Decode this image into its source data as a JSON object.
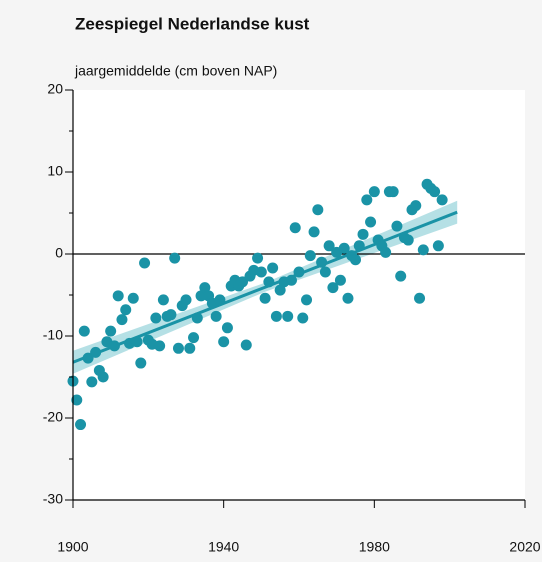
{
  "chart_data": {
    "type": "scatter",
    "title": "Zeespiegel Nederlandse kust",
    "subtitle": "jaargemiddelde (cm boven NAP)",
    "color": "#1a93a6",
    "band_color": "#a3d8de",
    "x": [
      1900,
      1901,
      1902,
      1903,
      1904,
      1905,
      1906,
      1907,
      1908,
      1909,
      1910,
      1911,
      1912,
      1913,
      1914,
      1915,
      1916,
      1917,
      1918,
      1919,
      1920,
      1921,
      1922,
      1923,
      1924,
      1925,
      1926,
      1927,
      1928,
      1929,
      1930,
      1931,
      1932,
      1933,
      1934,
      1935,
      1936,
      1937,
      1938,
      1939,
      1940,
      1941,
      1942,
      1943,
      1944,
      1945,
      1946,
      1947,
      1948,
      1949,
      1950,
      1951,
      1952,
      1953,
      1954,
      1955,
      1956,
      1957,
      1958,
      1959,
      1960,
      1961,
      1962,
      1963,
      1964,
      1965,
      1966,
      1967,
      1968,
      1969,
      1970,
      1971,
      1972,
      1973,
      1974,
      1975,
      1976,
      1977,
      1978,
      1979,
      1980,
      1981,
      1982,
      1983,
      1984,
      1985,
      1986,
      1987,
      1988,
      1989,
      1990,
      1991,
      1992,
      1993,
      1994,
      1995,
      1996,
      1997,
      1998
    ],
    "values": [
      -15.5,
      -17.8,
      -20.8,
      -9.4,
      -12.7,
      -15.6,
      -12,
      -14.2,
      -15,
      -10.7,
      -9.4,
      -11.2,
      -5.1,
      -8,
      -6.8,
      -10.9,
      -5.4,
      -10.7,
      -13.3,
      -1.1,
      -10.5,
      -11,
      -7.8,
      -11.2,
      -5.6,
      -7.6,
      -7.4,
      -0.5,
      -11.5,
      -6.3,
      -5.6,
      -11.5,
      -10.2,
      -7.8,
      -5.1,
      -4.1,
      -5.1,
      -6,
      -7.6,
      -5.6,
      -10.7,
      -9,
      -3.9,
      -3.2,
      -3.9,
      -3.4,
      -11.1,
      -2.7,
      -2,
      -0.5,
      -2.2,
      -5.4,
      -3.4,
      -1.7,
      -7.6,
      -4.4,
      -3.4,
      -7.6,
      -3.2,
      3.2,
      -2.2,
      -7.8,
      -5.6,
      -0.2,
      2.7,
      5.4,
      -1,
      -2.2,
      1,
      -4.1,
      0.2,
      -3.2,
      0.7,
      -5.4,
      -0.2,
      -0.7,
      1,
      2.4,
      6.6,
      3.9,
      7.6,
      1.7,
      1,
      0.2,
      7.6,
      7.6,
      3.4,
      -2.7,
      2,
      1.7,
      5.4,
      5.9,
      -5.4,
      0.5,
      8.5,
      8,
      7.6,
      1,
      6.6
    ],
    "trend": {
      "x": [
        1900,
        1951,
        2002
      ],
      "values": [
        -13.2,
        -4.05,
        5.1
      ],
      "lower": [
        -14.6,
        -4.6,
        3.7
      ],
      "upper": [
        -11.8,
        -3.5,
        6.5
      ]
    },
    "xlim": [
      1900,
      2020
    ],
    "xticks": [
      1900,
      1940,
      1980,
      2020
    ],
    "ylim": [
      -30,
      20
    ],
    "yticks": [
      -30,
      -20,
      -10,
      0,
      10,
      20
    ],
    "yminorticks": [
      -25,
      -15,
      -5,
      5,
      15
    ],
    "zero_line": 0
  }
}
